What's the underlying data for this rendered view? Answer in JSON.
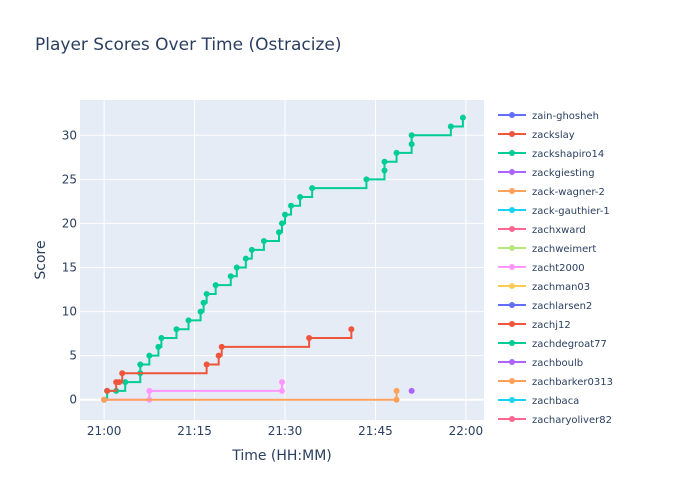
{
  "chart_data": {
    "type": "line",
    "line_shape": "step",
    "title": "Player Scores Over Time (Ostracize)",
    "xlabel": "Time (HH:MM)",
    "ylabel": "Score",
    "x_unit": "time of day (HH:MM)",
    "xlim": [
      "20:56",
      "22:03"
    ],
    "ylim": [
      -2.3,
      34
    ],
    "xticks": [
      "21:00",
      "21:15",
      "21:30",
      "21:45",
      "22:00"
    ],
    "yticks": [
      0,
      5,
      10,
      15,
      20,
      25,
      30
    ],
    "grid": true,
    "legend_position": "right",
    "series": [
      {
        "name": "zain-ghosheh",
        "color": "#636efa",
        "points": []
      },
      {
        "name": "zackslay",
        "color": "#EF553B",
        "points": [
          [
            "21:00:30",
            1
          ],
          [
            "21:02:00",
            2
          ],
          [
            "21:02:30",
            2
          ],
          [
            "21:03:00",
            3
          ],
          [
            "21:17:00",
            4
          ],
          [
            "21:19:00",
            5
          ],
          [
            "21:19:30",
            6
          ],
          [
            "21:34:00",
            7
          ],
          [
            "21:41:00",
            8
          ]
        ]
      },
      {
        "name": "zackshapiro14",
        "color": "#00cc96",
        "points": [
          [
            "21:00:00",
            0
          ],
          [
            "21:00:30",
            1
          ],
          [
            "21:02:00",
            1
          ],
          [
            "21:03:30",
            2
          ],
          [
            "21:06:00",
            3
          ],
          [
            "21:06:00",
            4
          ],
          [
            "21:07:30",
            5
          ],
          [
            "21:09:00",
            6
          ],
          [
            "21:09:30",
            7
          ],
          [
            "21:12:00",
            8
          ],
          [
            "21:14:00",
            9
          ],
          [
            "21:16:00",
            10
          ],
          [
            "21:16:30",
            11
          ],
          [
            "21:17:00",
            12
          ],
          [
            "21:18:30",
            13
          ],
          [
            "21:21:00",
            14
          ],
          [
            "21:22:00",
            15
          ],
          [
            "21:23:30",
            16
          ],
          [
            "21:24:30",
            17
          ],
          [
            "21:26:30",
            18
          ],
          [
            "21:29:00",
            19
          ],
          [
            "21:29:30",
            20
          ],
          [
            "21:30:00",
            21
          ],
          [
            "21:31:00",
            22
          ],
          [
            "21:32:30",
            23
          ],
          [
            "21:34:30",
            24
          ],
          [
            "21:43:30",
            25
          ],
          [
            "21:46:30",
            26
          ],
          [
            "21:46:30",
            27
          ],
          [
            "21:48:30",
            28
          ],
          [
            "21:51:00",
            29
          ],
          [
            "21:51:00",
            30
          ],
          [
            "21:57:30",
            31
          ],
          [
            "21:59:30",
            32
          ]
        ]
      },
      {
        "name": "zackgiesting",
        "color": "#ab63fa",
        "points": [
          [
            "21:51:00",
            1
          ]
        ]
      },
      {
        "name": "zack-wagner-2",
        "color": "#FFA15A",
        "points": [
          [
            "21:00:00",
            0
          ],
          [
            "21:48:30",
            0
          ],
          [
            "21:48:30",
            1
          ]
        ]
      },
      {
        "name": "zack-gauthier-1",
        "color": "#19d3f3",
        "points": []
      },
      {
        "name": "zachxward",
        "color": "#FF6692",
        "points": []
      },
      {
        "name": "zachweimert",
        "color": "#B6E880",
        "points": []
      },
      {
        "name": "zacht2000",
        "color": "#FF97FF",
        "points": [
          [
            "21:00:00",
            0
          ],
          [
            "21:07:30",
            0
          ],
          [
            "21:07:30",
            1
          ],
          [
            "21:29:30",
            1
          ],
          [
            "21:29:30",
            2
          ]
        ]
      },
      {
        "name": "zachman03",
        "color": "#FECB52",
        "points": []
      },
      {
        "name": "zachlarsen2",
        "color": "#636efa",
        "points": []
      },
      {
        "name": "zachj12",
        "color": "#EF553B",
        "points": []
      },
      {
        "name": "zachdegroat77",
        "color": "#00cc96",
        "points": []
      },
      {
        "name": "zachboulb",
        "color": "#ab63fa",
        "points": []
      },
      {
        "name": "zachbarker0313",
        "color": "#FFA15A",
        "points": []
      },
      {
        "name": "zachbaca",
        "color": "#19d3f3",
        "points": []
      },
      {
        "name": "zacharyoliver82",
        "color": "#FF6692",
        "points": []
      }
    ]
  }
}
